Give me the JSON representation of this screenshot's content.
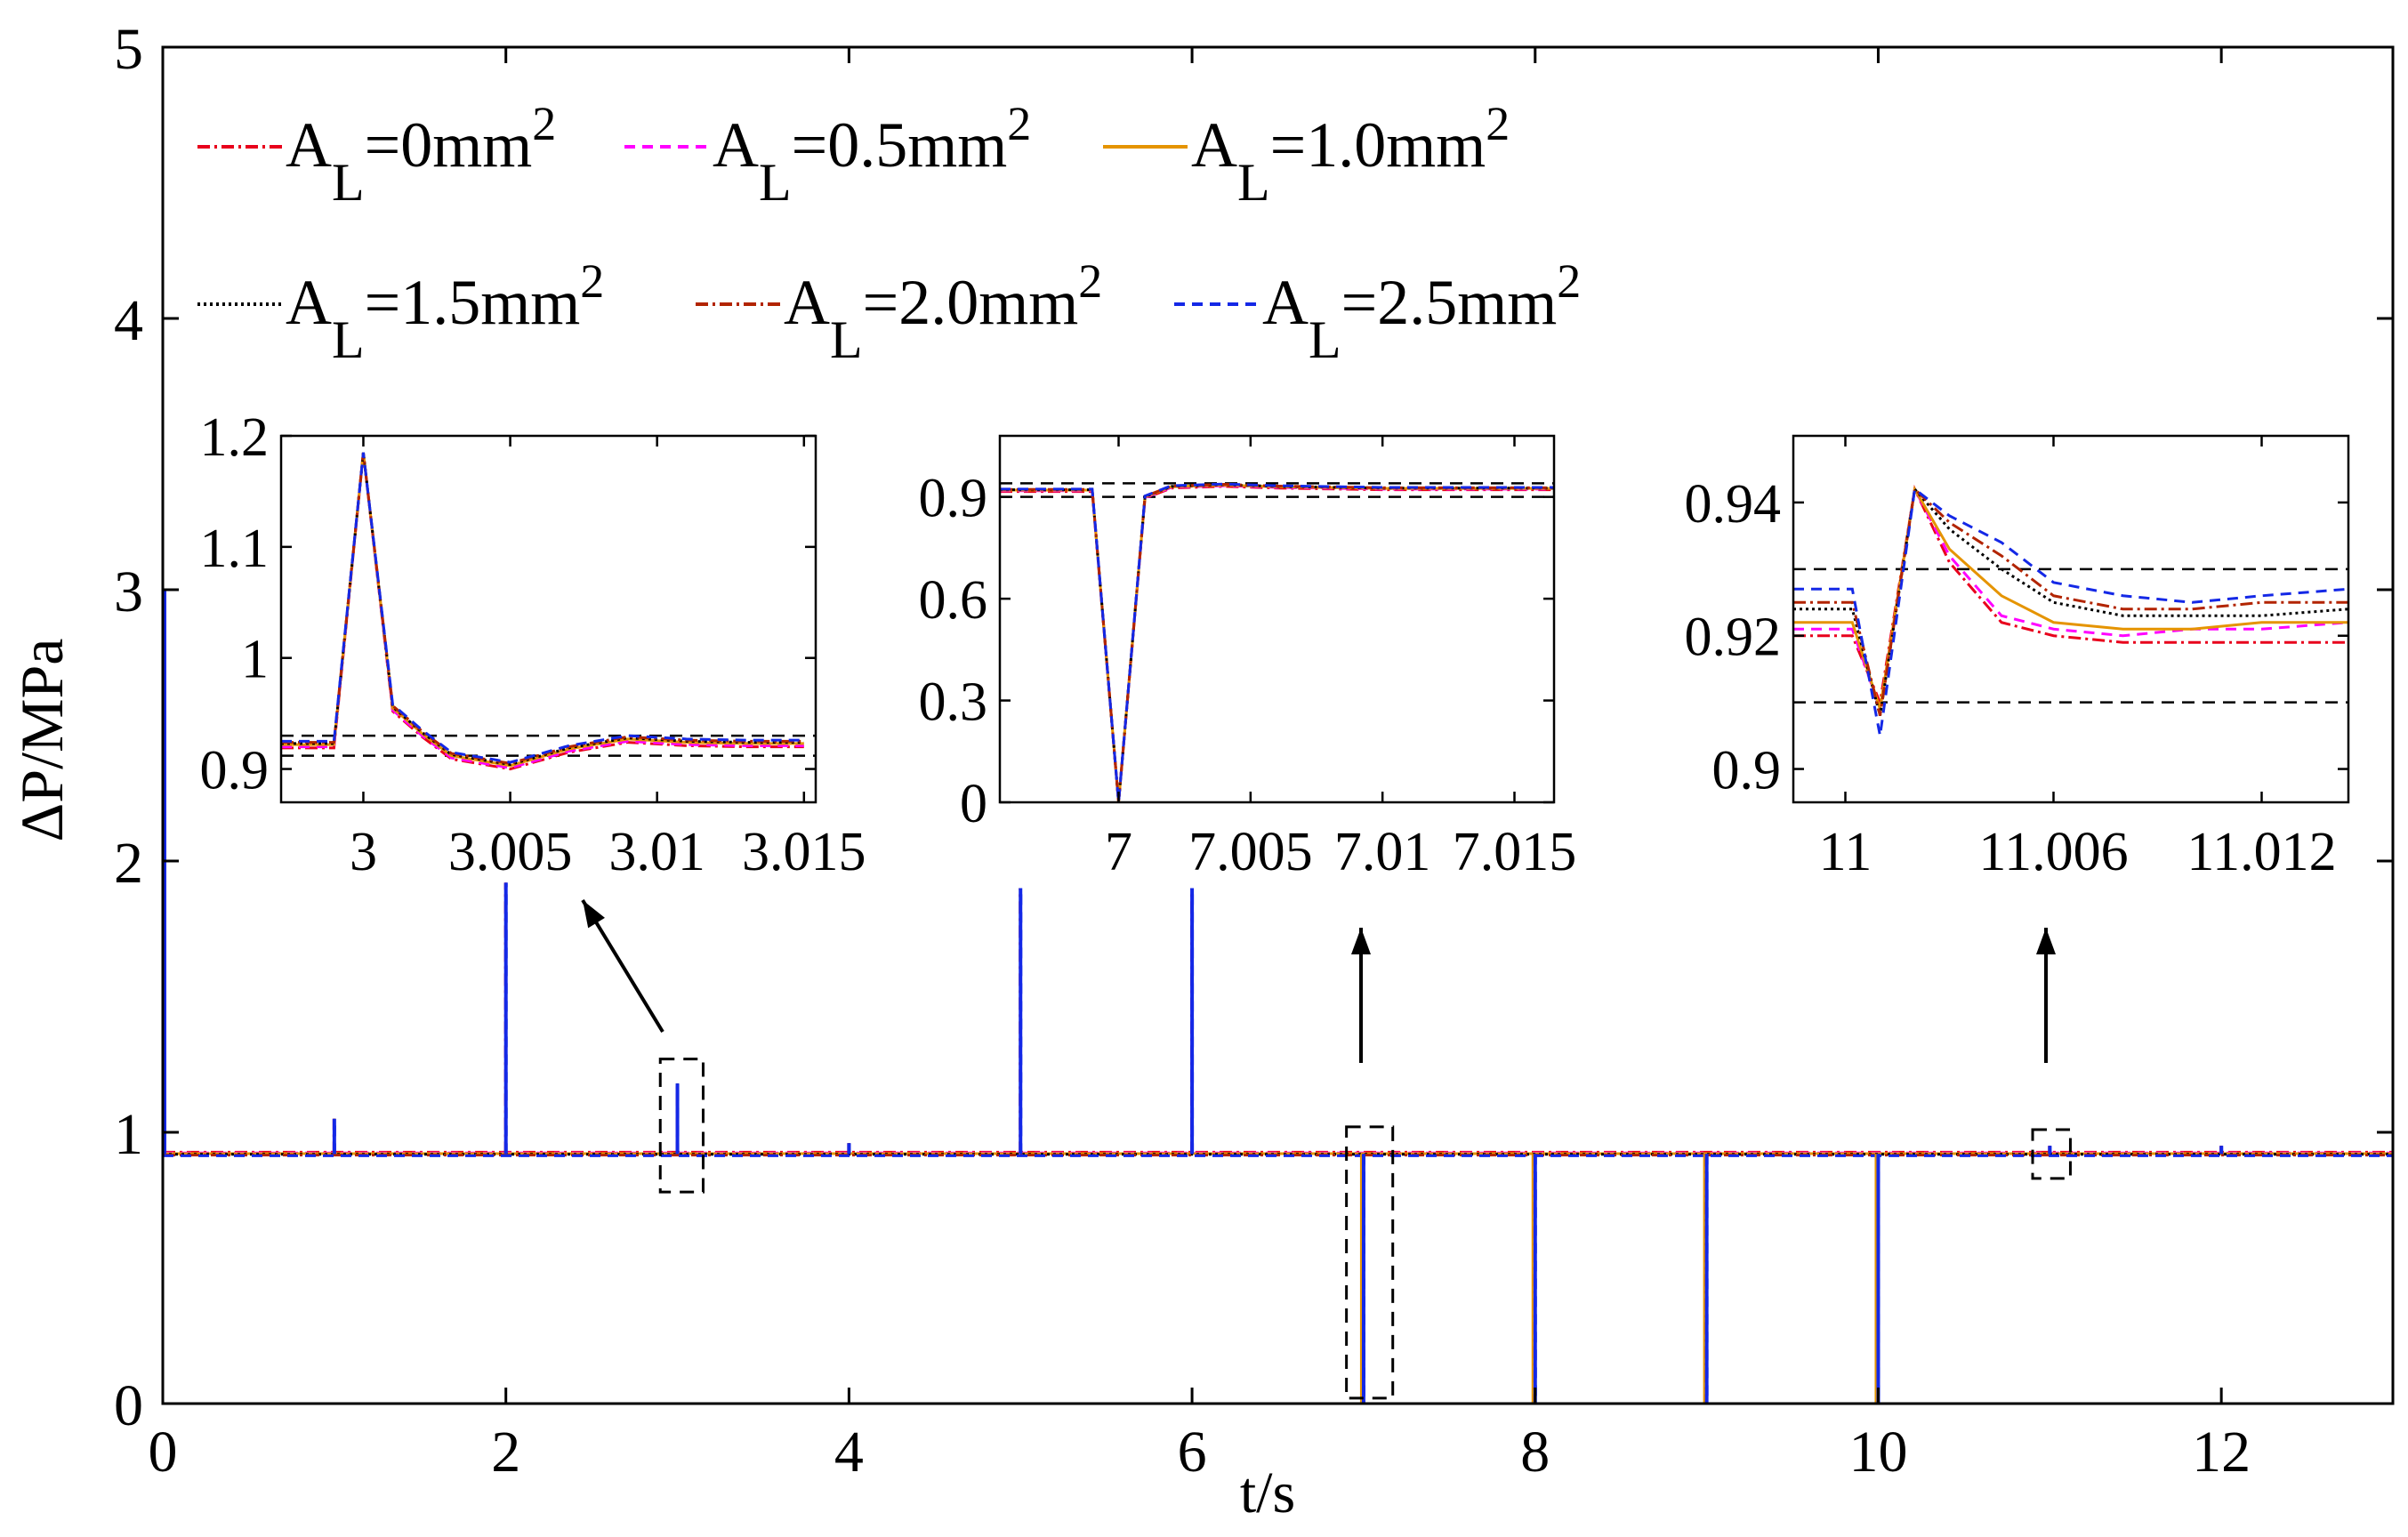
{
  "chart_data": {
    "type": "line",
    "main": {
      "xlabel": "t/s",
      "ylabel": "ΔP/MPa",
      "xlim": [
        0,
        13
      ],
      "ylim": [
        0,
        5
      ],
      "xticks": [
        0,
        2,
        4,
        6,
        8,
        10,
        12
      ],
      "yticks": [
        0,
        1,
        2,
        3,
        4,
        5
      ],
      "baseline": 0.92,
      "events": [
        {
          "t": 0,
          "peak": 3.0
        },
        {
          "t": 1,
          "peak": 1.05
        },
        {
          "t": 2,
          "peak": 1.92
        },
        {
          "t": 3,
          "peak": 1.18
        },
        {
          "t": 4,
          "peak": 0.96
        },
        {
          "t": 5,
          "peak": 1.9
        },
        {
          "t": 6,
          "peak": 1.9
        },
        {
          "t": 7,
          "peak": 0
        },
        {
          "t": 8,
          "peak": 0
        },
        {
          "t": 9,
          "peak": 0
        },
        {
          "t": 10,
          "peak": 0
        },
        {
          "t": 11,
          "peak": 0.95
        },
        {
          "t": 12,
          "peak": 0.95
        }
      ],
      "highlight_boxes": [
        {
          "t0": 2.9,
          "t1": 3.15,
          "p0": 0.78,
          "p1": 1.27
        },
        {
          "t0": 6.9,
          "t1": 7.17,
          "p0": 0.02,
          "p1": 1.02
        },
        {
          "t0": 10.9,
          "t1": 11.12,
          "p0": 0.83,
          "p1": 1.01
        }
      ]
    },
    "legend": [
      {
        "name": "A_L=0mm^2",
        "prefix": "A",
        "sub": "L",
        "mid": "=0mm",
        "sup": "2",
        "color": "#e8001c",
        "dash": "14,5,3,5"
      },
      {
        "name": "A_L=0.5mm^2",
        "prefix": "A",
        "sub": "L",
        "mid": "=0.5mm",
        "sup": "2",
        "color": "#ff00ff",
        "dash": "12,8"
      },
      {
        "name": "A_L=1.0mm^2",
        "prefix": "A",
        "sub": "L",
        "mid": "=1.0mm",
        "sup": "2",
        "color": "#e59400",
        "dash": ""
      },
      {
        "name": "A_L=1.5mm^2",
        "prefix": "A",
        "sub": "L",
        "mid": "=1.5mm",
        "sup": "2",
        "color": "#000000",
        "dash": "3,4"
      },
      {
        "name": "A_L=2.0mm^2",
        "prefix": "A",
        "sub": "L",
        "mid": "=2.0mm",
        "sup": "2",
        "color": "#b22400",
        "dash": "14,5,3,5"
      },
      {
        "name": "A_L=2.5mm^2",
        "prefix": "A",
        "sub": "L",
        "mid": "=2.5mm",
        "sup": "2",
        "color": "#1428e6",
        "dash": "12,8"
      }
    ],
    "insets": [
      {
        "xlim": [
          2.9972,
          3.0154
        ],
        "ylim": [
          0.87,
          1.2
        ],
        "xticks": [
          3,
          3.005,
          3.01,
          3.015
        ],
        "xtick_labels": [
          "3",
          "3.005",
          "3.01",
          "3.015"
        ],
        "yticks": [
          0.9,
          1,
          1.1,
          1.2
        ],
        "ytick_labels": [
          "0.9",
          "1",
          "1.1",
          "1.2"
        ],
        "ref_lines": [
          0.912,
          0.93
        ],
        "time": [
          2.9972,
          2.999,
          3.0,
          3.001,
          3.002,
          3.003,
          3.005,
          3.007,
          3.009,
          3.011,
          3.013,
          3.015
        ],
        "base_values": [
          0.922,
          0.922,
          1.185,
          0.955,
          0.932,
          0.912,
          0.903,
          0.918,
          0.927,
          0.924,
          0.923,
          0.923
        ],
        "series_offsets": [
          -0.003,
          -0.002,
          0,
          0.001,
          0.002,
          0.003
        ]
      },
      {
        "xlim": [
          6.9955,
          7.0165
        ],
        "ylim": [
          0,
          1.08
        ],
        "xticks": [
          7,
          7.005,
          7.01,
          7.015
        ],
        "xtick_labels": [
          "7",
          "7.005",
          "7.01",
          "7.015"
        ],
        "yticks": [
          0,
          0.3,
          0.6,
          0.9
        ],
        "ytick_labels": [
          "0",
          "0.3",
          "0.6",
          "0.9"
        ],
        "ref_lines": [
          0.9,
          0.94
        ],
        "time": [
          6.9955,
          6.999,
          7.0,
          7.001,
          7.002,
          7.004,
          7.006,
          7.01,
          7.014,
          7.0165
        ],
        "base_values": [
          0.92,
          0.92,
          0.0,
          0.9,
          0.93,
          0.935,
          0.93,
          0.925,
          0.925,
          0.925
        ],
        "series_offsets": [
          -0.004,
          -0.002,
          0,
          0.001,
          0.002,
          0.003
        ]
      },
      {
        "xlim": [
          10.9985,
          11.0145
        ],
        "ylim": [
          0.895,
          0.95
        ],
        "xticks": [
          11,
          11.006,
          11.012
        ],
        "xtick_labels": [
          "11",
          "11.006",
          "11.012"
        ],
        "yticks": [
          0.9,
          0.92,
          0.94
        ],
        "ytick_labels": [
          "0.9",
          "0.92",
          "0.94"
        ],
        "ref_lines": [
          0.91,
          0.93
        ],
        "series_time": [
          [
            10.9985,
            11.0002,
            11.001,
            11.002,
            11.003,
            11.0045,
            11.006,
            11.008,
            11.01,
            11.012,
            11.0145
          ],
          [
            10.9985,
            11.0002,
            11.001,
            11.002,
            11.003,
            11.0045,
            11.006,
            11.008,
            11.01,
            11.012,
            11.0145
          ],
          [
            10.9985,
            11.0002,
            11.001,
            11.002,
            11.003,
            11.0045,
            11.006,
            11.008,
            11.01,
            11.012,
            11.0145
          ],
          [
            10.9985,
            11.0002,
            11.001,
            11.002,
            11.003,
            11.0045,
            11.006,
            11.008,
            11.01,
            11.012,
            11.0145
          ],
          [
            10.9985,
            11.0002,
            11.001,
            11.002,
            11.003,
            11.0045,
            11.006,
            11.008,
            11.01,
            11.012,
            11.0145
          ],
          [
            10.9985,
            11.0002,
            11.001,
            11.002,
            11.003,
            11.0045,
            11.006,
            11.008,
            11.01,
            11.012,
            11.0145
          ]
        ],
        "series_values": [
          [
            0.92,
            0.92,
            0.91,
            0.942,
            0.931,
            0.922,
            0.92,
            0.919,
            0.919,
            0.919,
            0.919
          ],
          [
            0.921,
            0.921,
            0.909,
            0.942,
            0.932,
            0.923,
            0.921,
            0.92,
            0.921,
            0.921,
            0.922
          ],
          [
            0.922,
            0.922,
            0.909,
            0.942,
            0.933,
            0.926,
            0.922,
            0.921,
            0.921,
            0.922,
            0.922
          ],
          [
            0.924,
            0.924,
            0.908,
            0.942,
            0.936,
            0.93,
            0.925,
            0.923,
            0.923,
            0.923,
            0.924
          ],
          [
            0.925,
            0.925,
            0.908,
            0.942,
            0.937,
            0.932,
            0.926,
            0.924,
            0.924,
            0.925,
            0.925
          ],
          [
            0.927,
            0.927,
            0.905,
            0.942,
            0.938,
            0.934,
            0.928,
            0.926,
            0.925,
            0.926,
            0.927
          ]
        ]
      }
    ]
  }
}
